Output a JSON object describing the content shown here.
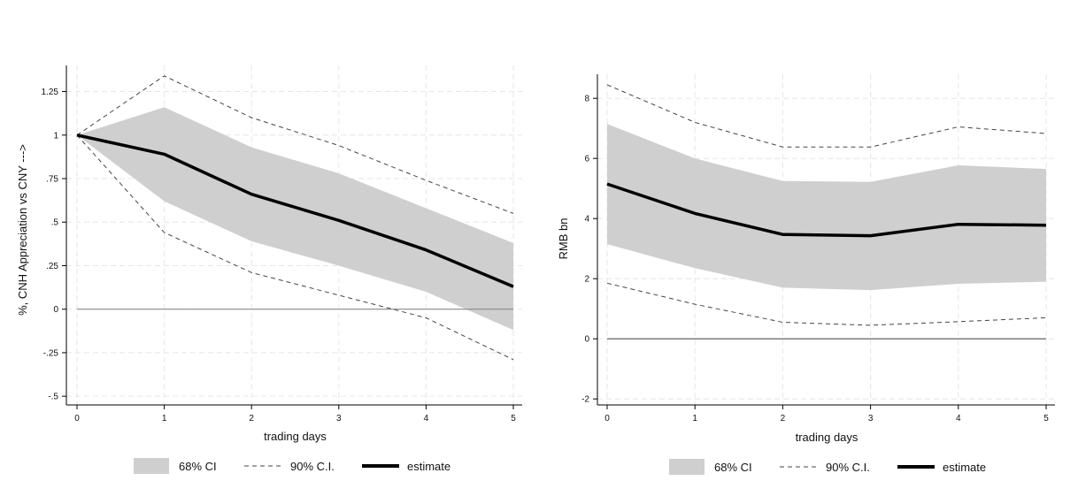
{
  "chart_data": [
    {
      "type": "line",
      "xlabel": "trading days",
      "ylabel": "%, CNH Appreciation vs CNY --->",
      "x": [
        0,
        1,
        2,
        3,
        4,
        5
      ],
      "xticks": [
        "0",
        "1",
        "2",
        "3",
        "4",
        "5"
      ],
      "yticks": [
        -0.5,
        -0.25,
        0,
        0.25,
        0.5,
        0.75,
        1,
        1.25
      ],
      "ytick_labels": [
        "-.5",
        "-.25",
        "0",
        ".25",
        ".5",
        ".75",
        "1",
        "1.25"
      ],
      "xlim": [
        0,
        5
      ],
      "ylim": [
        -0.55,
        1.4
      ],
      "grid": true,
      "zero_line": true,
      "legend_position": "bottom",
      "series": [
        {
          "name": "68% CI",
          "kind": "band",
          "lower": [
            1.0,
            0.62,
            0.39,
            0.25,
            0.1,
            -0.12
          ],
          "upper": [
            1.0,
            1.16,
            0.93,
            0.78,
            0.58,
            0.38
          ]
        },
        {
          "name": "90% C.I.",
          "kind": "dashed-band",
          "lower": [
            1.0,
            0.44,
            0.21,
            0.08,
            -0.05,
            -0.29
          ],
          "upper": [
            1.0,
            1.34,
            1.1,
            0.94,
            0.74,
            0.55
          ]
        },
        {
          "name": "estimate",
          "kind": "line",
          "values": [
            1.0,
            0.89,
            0.66,
            0.51,
            0.34,
            0.13
          ]
        }
      ]
    },
    {
      "type": "line",
      "xlabel": "trading days",
      "ylabel": "RMB bn",
      "x": [
        0,
        1,
        2,
        3,
        4,
        5
      ],
      "xticks": [
        "0",
        "1",
        "2",
        "3",
        "4",
        "5"
      ],
      "yticks": [
        -2,
        0,
        2,
        4,
        6,
        8
      ],
      "ytick_labels": [
        "-2",
        "0",
        "2",
        "4",
        "6",
        "8"
      ],
      "xlim": [
        0,
        5
      ],
      "ylim": [
        -2.2,
        8.8
      ],
      "grid": true,
      "zero_line": true,
      "legend_position": "bottom",
      "series": [
        {
          "name": "68% CI",
          "kind": "band",
          "lower": [
            3.15,
            2.35,
            1.7,
            1.62,
            1.83,
            1.9
          ],
          "upper": [
            7.15,
            6.0,
            5.25,
            5.22,
            5.77,
            5.65
          ]
        },
        {
          "name": "90% C.I.",
          "kind": "dashed-band",
          "lower": [
            1.85,
            1.15,
            0.55,
            0.45,
            0.57,
            0.7
          ],
          "upper": [
            8.45,
            7.2,
            6.38,
            6.38,
            7.05,
            6.83
          ]
        },
        {
          "name": "estimate",
          "kind": "line",
          "values": [
            5.15,
            4.17,
            3.47,
            3.43,
            3.81,
            3.78
          ]
        }
      ]
    }
  ]
}
